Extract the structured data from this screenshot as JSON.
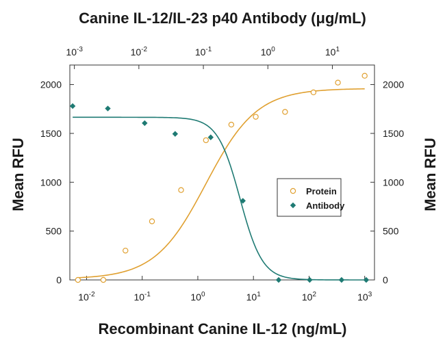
{
  "chart_data": {
    "type": "scatter",
    "title": "",
    "x_label_bottom": "Recombinant Canine IL-12 (ng/mL)",
    "x_label_top": "Canine IL-12/IL-23 p40 Antibody (μg/mL)",
    "y_label_left": "Mean RFU",
    "y_label_right": "Mean RFU",
    "x_bottom": {
      "scale": "log",
      "range": [
        0.005,
        1500
      ],
      "ticks": [
        {
          "value": 0.01,
          "base": "10",
          "exp": "-2"
        },
        {
          "value": 0.1,
          "base": "10",
          "exp": "-1"
        },
        {
          "value": 1,
          "base": "10",
          "exp": "0"
        },
        {
          "value": 10,
          "base": "10",
          "exp": "1"
        },
        {
          "value": 100,
          "base": "10",
          "exp": "2"
        },
        {
          "value": 1000,
          "base": "10",
          "exp": "3"
        }
      ]
    },
    "x_top": {
      "scale": "log",
      "range": [
        0.00085,
        45
      ],
      "ticks": [
        {
          "value": 0.001,
          "base": "10",
          "exp": "-3"
        },
        {
          "value": 0.01,
          "base": "10",
          "exp": "-2"
        },
        {
          "value": 0.1,
          "base": "10",
          "exp": "-1"
        },
        {
          "value": 1,
          "base": "10",
          "exp": "0"
        },
        {
          "value": 10,
          "base": "10",
          "exp": "1"
        }
      ]
    },
    "y": {
      "range": [
        0,
        2200
      ],
      "ticks": [
        {
          "value": 0,
          "label": "0"
        },
        {
          "value": 500,
          "label": "500"
        },
        {
          "value": 1000,
          "label": "1000"
        },
        {
          "value": 1500,
          "label": "1500"
        },
        {
          "value": 2000,
          "label": "2000"
        }
      ]
    },
    "series": [
      {
        "name": "Protein",
        "axis": "bottom",
        "marker": "open-circle",
        "color": "#E0A030",
        "points": [
          {
            "x": 0.007,
            "y": 0
          },
          {
            "x": 0.02,
            "y": 0
          },
          {
            "x": 0.05,
            "y": 300
          },
          {
            "x": 0.15,
            "y": 600
          },
          {
            "x": 0.5,
            "y": 920
          },
          {
            "x": 1.4,
            "y": 1430
          },
          {
            "x": 4,
            "y": 1590
          },
          {
            "x": 11,
            "y": 1670
          },
          {
            "x": 37,
            "y": 1720
          },
          {
            "x": 120,
            "y": 1920
          },
          {
            "x": 330,
            "y": 2020
          },
          {
            "x": 1000,
            "y": 2090
          }
        ],
        "fit": {
          "bottom": 10,
          "top": 1960,
          "ec50": 1.4,
          "hill": 0.95
        }
      },
      {
        "name": "Antibody",
        "axis": "top",
        "marker": "filled-diamond",
        "color": "#1E7A73",
        "points": [
          {
            "x": 0.00094,
            "y": 1780
          },
          {
            "x": 0.0033,
            "y": 1755
          },
          {
            "x": 0.0123,
            "y": 1605
          },
          {
            "x": 0.0365,
            "y": 1495
          },
          {
            "x": 0.13,
            "y": 1460
          },
          {
            "x": 0.41,
            "y": 810
          },
          {
            "x": 1.47,
            "y": 0
          },
          {
            "x": 4.45,
            "y": 0
          },
          {
            "x": 13.9,
            "y": 0
          },
          {
            "x": 33.5,
            "y": 0
          }
        ],
        "fit": {
          "bottom": 0,
          "top": 1665,
          "ec50": 0.37,
          "hill": 2.5
        }
      }
    ],
    "legend": {
      "position": "right-middle",
      "items": [
        {
          "label": "Protein",
          "marker": "open-circle",
          "color": "#E0A030"
        },
        {
          "label": "Antibody",
          "marker": "filled-diamond",
          "color": "#1E7A73"
        }
      ]
    },
    "grid": false
  }
}
